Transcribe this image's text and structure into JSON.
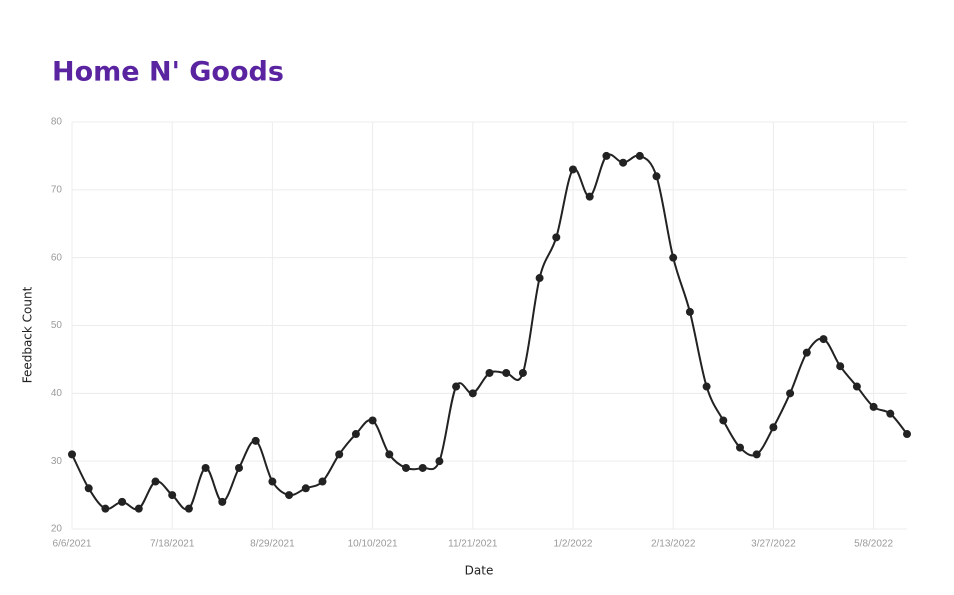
{
  "chart_data": {
    "type": "line",
    "title": "Home N' Goods",
    "xlabel": "Date",
    "ylabel": "Feedback Count",
    "x": [
      "6/6/2021",
      "6/13/2021",
      "6/20/2021",
      "6/27/2021",
      "7/4/2021",
      "7/11/2021",
      "7/18/2021",
      "7/25/2021",
      "8/1/2021",
      "8/8/2021",
      "8/15/2021",
      "8/22/2021",
      "8/29/2021",
      "9/5/2021",
      "9/12/2021",
      "9/19/2021",
      "9/26/2021",
      "10/3/2021",
      "10/10/2021",
      "10/17/2021",
      "10/24/2021",
      "10/31/2021",
      "11/7/2021",
      "11/14/2021",
      "11/21/2021",
      "11/28/2021",
      "12/5/2021",
      "12/12/2021",
      "12/19/2021",
      "12/26/2021",
      "1/2/2022",
      "1/9/2022",
      "1/16/2022",
      "1/23/2022",
      "1/30/2022",
      "2/6/2022",
      "2/13/2022",
      "2/20/2022",
      "2/27/2022",
      "3/6/2022",
      "3/13/2022",
      "3/20/2022",
      "3/27/2022",
      "4/3/2022",
      "4/10/2022",
      "4/17/2022",
      "4/24/2022",
      "5/1/2022",
      "5/8/2022",
      "5/15/2022",
      "5/22/2022"
    ],
    "series": [
      {
        "name": "Feedback Count",
        "color": "#222222",
        "values": [
          31,
          26,
          23,
          24,
          23,
          27,
          25,
          23,
          29,
          24,
          29,
          33,
          27,
          25,
          26,
          27,
          31,
          34,
          36,
          31,
          29,
          29,
          30,
          41,
          40,
          43,
          43,
          43,
          57,
          63,
          73,
          69,
          75,
          74,
          75,
          72,
          60,
          52,
          41,
          36,
          32,
          31,
          35,
          40,
          46,
          48,
          44,
          41,
          38,
          37,
          34
        ]
      }
    ],
    "xlim": [
      "6/6/2021",
      "5/22/2022"
    ],
    "xticks": [
      "6/6/2021",
      "7/18/2021",
      "8/29/2021",
      "10/10/2021",
      "11/21/2021",
      "1/2/2022",
      "2/13/2022",
      "3/27/2022",
      "5/8/2022"
    ],
    "ylim": [
      20,
      80
    ],
    "yticks": [
      20,
      30,
      40,
      50,
      60,
      70,
      80
    ],
    "grid": true
  }
}
